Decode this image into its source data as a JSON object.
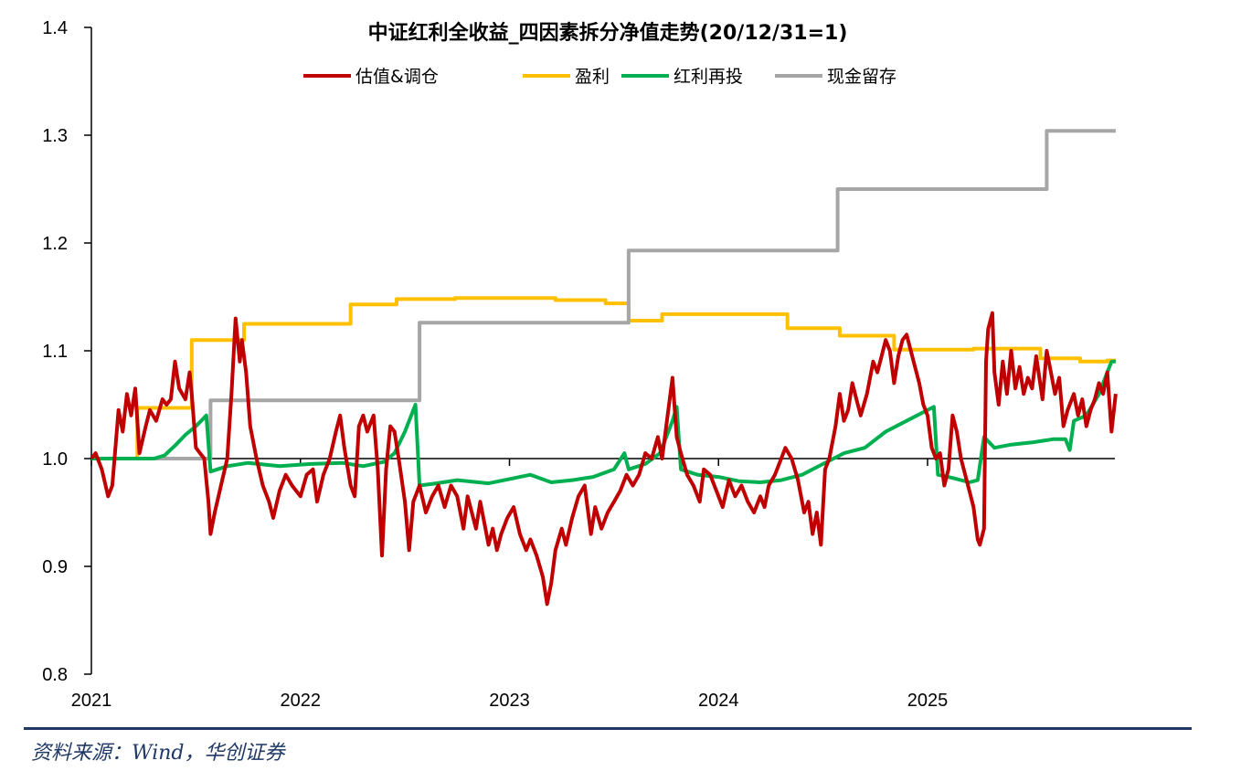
{
  "chart_data": {
    "type": "line",
    "title": "中证红利全收益_四因素拆分净值走势(20/12/31=1)",
    "ylim": [
      0.8,
      1.4
    ],
    "yticks": [
      "0.8",
      "0.9",
      "1.0",
      "1.1",
      "1.2",
      "1.3",
      "1.4"
    ],
    "xlim": [
      2021.0,
      2025.9
    ],
    "xticks": [
      "2021",
      "2022",
      "2023",
      "2024",
      "2025"
    ],
    "baseline": 1.0,
    "legend_position": "top-center",
    "series": [
      {
        "name": "估值&调仓",
        "color": "#c00000",
        "points": [
          [
            2021.0,
            1.0
          ],
          [
            2021.02,
            1.005
          ],
          [
            2021.05,
            0.99
          ],
          [
            2021.08,
            0.965
          ],
          [
            2021.1,
            0.975
          ],
          [
            2021.13,
            1.045
          ],
          [
            2021.15,
            1.025
          ],
          [
            2021.17,
            1.06
          ],
          [
            2021.19,
            1.04
          ],
          [
            2021.21,
            1.065
          ],
          [
            2021.23,
            1.005
          ],
          [
            2021.26,
            1.03
          ],
          [
            2021.28,
            1.045
          ],
          [
            2021.31,
            1.035
          ],
          [
            2021.34,
            1.055
          ],
          [
            2021.36,
            1.05
          ],
          [
            2021.38,
            1.055
          ],
          [
            2021.4,
            1.09
          ],
          [
            2021.42,
            1.065
          ],
          [
            2021.45,
            1.055
          ],
          [
            2021.47,
            1.08
          ],
          [
            2021.48,
            1.06
          ],
          [
            2021.5,
            1.01
          ],
          [
            2021.52,
            1.005
          ],
          [
            2021.54,
            1.0
          ],
          [
            2021.56,
            0.96
          ],
          [
            2021.57,
            0.93
          ],
          [
            2021.59,
            0.95
          ],
          [
            2021.62,
            0.975
          ],
          [
            2021.65,
            1.0
          ],
          [
            2021.67,
            1.06
          ],
          [
            2021.69,
            1.13
          ],
          [
            2021.71,
            1.09
          ],
          [
            2021.72,
            1.11
          ],
          [
            2021.74,
            1.08
          ],
          [
            2021.76,
            1.03
          ],
          [
            2021.79,
            1.0
          ],
          [
            2021.82,
            0.975
          ],
          [
            2021.85,
            0.96
          ],
          [
            2021.87,
            0.945
          ],
          [
            2021.9,
            0.97
          ],
          [
            2021.93,
            0.985
          ],
          [
            2021.96,
            0.975
          ],
          [
            2022.0,
            0.965
          ],
          [
            2022.03,
            0.985
          ],
          [
            2022.06,
            0.99
          ],
          [
            2022.08,
            0.96
          ],
          [
            2022.11,
            0.985
          ],
          [
            2022.14,
            1.0
          ],
          [
            2022.17,
            1.025
          ],
          [
            2022.19,
            1.04
          ],
          [
            2022.21,
            1.01
          ],
          [
            2022.24,
            0.975
          ],
          [
            2022.26,
            0.965
          ],
          [
            2022.28,
            1.03
          ],
          [
            2022.3,
            1.04
          ],
          [
            2022.32,
            1.025
          ],
          [
            2022.35,
            1.04
          ],
          [
            2022.37,
            0.99
          ],
          [
            2022.39,
            0.91
          ],
          [
            2022.41,
            0.99
          ],
          [
            2022.43,
            1.03
          ],
          [
            2022.45,
            1.025
          ],
          [
            2022.47,
            1.0
          ],
          [
            2022.5,
            0.96
          ],
          [
            2022.52,
            0.915
          ],
          [
            2022.54,
            0.96
          ],
          [
            2022.57,
            0.975
          ],
          [
            2022.6,
            0.95
          ],
          [
            2022.63,
            0.965
          ],
          [
            2022.66,
            0.975
          ],
          [
            2022.69,
            0.955
          ],
          [
            2022.72,
            0.975
          ],
          [
            2022.75,
            0.965
          ],
          [
            2022.78,
            0.935
          ],
          [
            2022.8,
            0.965
          ],
          [
            2022.82,
            0.95
          ],
          [
            2022.84,
            0.935
          ],
          [
            2022.86,
            0.96
          ],
          [
            2022.88,
            0.94
          ],
          [
            2022.9,
            0.92
          ],
          [
            2022.92,
            0.935
          ],
          [
            2022.94,
            0.915
          ],
          [
            2022.96,
            0.93
          ],
          [
            2022.99,
            0.945
          ],
          [
            2023.02,
            0.955
          ],
          [
            2023.05,
            0.93
          ],
          [
            2023.08,
            0.915
          ],
          [
            2023.1,
            0.925
          ],
          [
            2023.13,
            0.91
          ],
          [
            2023.16,
            0.89
          ],
          [
            2023.18,
            0.865
          ],
          [
            2023.2,
            0.885
          ],
          [
            2023.22,
            0.915
          ],
          [
            2023.25,
            0.935
          ],
          [
            2023.27,
            0.92
          ],
          [
            2023.3,
            0.945
          ],
          [
            2023.33,
            0.965
          ],
          [
            2023.36,
            0.975
          ],
          [
            2023.39,
            0.93
          ],
          [
            2023.41,
            0.955
          ],
          [
            2023.44,
            0.935
          ],
          [
            2023.47,
            0.95
          ],
          [
            2023.5,
            0.96
          ],
          [
            2023.53,
            0.97
          ],
          [
            2023.56,
            0.985
          ],
          [
            2023.59,
            0.975
          ],
          [
            2023.62,
            0.985
          ],
          [
            2023.65,
            1.005
          ],
          [
            2023.68,
            1.0
          ],
          [
            2023.71,
            1.02
          ],
          [
            2023.73,
            1.0
          ],
          [
            2023.76,
            1.045
          ],
          [
            2023.78,
            1.075
          ],
          [
            2023.8,
            1.02
          ],
          [
            2023.82,
            1.005
          ],
          [
            2023.85,
            0.985
          ],
          [
            2023.88,
            0.975
          ],
          [
            2023.91,
            0.96
          ],
          [
            2023.93,
            0.99
          ],
          [
            2023.96,
            0.985
          ],
          [
            2023.99,
            0.97
          ],
          [
            2024.02,
            0.955
          ],
          [
            2024.05,
            0.98
          ],
          [
            2024.08,
            0.965
          ],
          [
            2024.11,
            0.975
          ],
          [
            2024.14,
            0.96
          ],
          [
            2024.17,
            0.95
          ],
          [
            2024.2,
            0.965
          ],
          [
            2024.22,
            0.955
          ],
          [
            2024.24,
            0.975
          ],
          [
            2024.27,
            0.985
          ],
          [
            2024.3,
            1.0
          ],
          [
            2024.32,
            1.01
          ],
          [
            2024.35,
            1.0
          ],
          [
            2024.38,
            0.98
          ],
          [
            2024.41,
            0.95
          ],
          [
            2024.43,
            0.96
          ],
          [
            2024.45,
            0.93
          ],
          [
            2024.47,
            0.95
          ],
          [
            2024.49,
            0.92
          ],
          [
            2024.51,
            0.99
          ],
          [
            2024.53,
            1.0
          ],
          [
            2024.56,
            1.03
          ],
          [
            2024.58,
            1.06
          ],
          [
            2024.6,
            1.035
          ],
          [
            2024.62,
            1.045
          ],
          [
            2024.64,
            1.07
          ],
          [
            2024.66,
            1.055
          ],
          [
            2024.68,
            1.04
          ],
          [
            2024.71,
            1.06
          ],
          [
            2024.74,
            1.09
          ],
          [
            2024.76,
            1.08
          ],
          [
            2024.78,
            1.095
          ],
          [
            2024.8,
            1.11
          ],
          [
            2024.82,
            1.1
          ],
          [
            2024.84,
            1.07
          ],
          [
            2024.86,
            1.095
          ],
          [
            2024.88,
            1.11
          ],
          [
            2024.9,
            1.115
          ],
          [
            2024.92,
            1.1
          ],
          [
            2024.94,
            1.085
          ],
          [
            2024.96,
            1.07
          ],
          [
            2024.98,
            1.05
          ],
          [
            2025.0,
            1.04
          ],
          [
            2025.02,
            1.01
          ],
          [
            2025.04,
            1.0
          ],
          [
            2025.06,
            1.005
          ],
          [
            2025.08,
            0.975
          ],
          [
            2025.1,
            0.99
          ],
          [
            2025.12,
            1.04
          ],
          [
            2025.14,
            1.025
          ],
          [
            2025.16,
            1.0
          ],
          [
            2025.18,
            0.985
          ],
          [
            2025.2,
            0.97
          ],
          [
            2025.22,
            0.955
          ],
          [
            2025.23,
            0.94
          ],
          [
            2025.24,
            0.925
          ],
          [
            2025.25,
            0.92
          ],
          [
            2025.27,
            0.935
          ],
          [
            2025.28,
            1.09
          ],
          [
            2025.29,
            1.12
          ],
          [
            2025.31,
            1.135
          ],
          [
            2025.32,
            1.08
          ],
          [
            2025.34,
            1.05
          ],
          [
            2025.36,
            1.09
          ],
          [
            2025.38,
            1.06
          ],
          [
            2025.4,
            1.1
          ],
          [
            2025.42,
            1.065
          ],
          [
            2025.44,
            1.085
          ],
          [
            2025.46,
            1.06
          ],
          [
            2025.48,
            1.075
          ],
          [
            2025.5,
            1.065
          ],
          [
            2025.52,
            1.095
          ],
          [
            2025.55,
            1.055
          ],
          [
            2025.57,
            1.1
          ],
          [
            2025.59,
            1.08
          ],
          [
            2025.61,
            1.06
          ],
          [
            2025.63,
            1.075
          ],
          [
            2025.65,
            1.03
          ],
          [
            2025.67,
            1.045
          ],
          [
            2025.7,
            1.06
          ],
          [
            2025.72,
            1.04
          ],
          [
            2025.74,
            1.055
          ],
          [
            2025.76,
            1.03
          ],
          [
            2025.78,
            1.045
          ],
          [
            2025.8,
            1.055
          ],
          [
            2025.82,
            1.07
          ],
          [
            2025.84,
            1.06
          ],
          [
            2025.86,
            1.08
          ],
          [
            2025.88,
            1.025
          ],
          [
            2025.9,
            1.06
          ]
        ]
      },
      {
        "name": "盈利",
        "color": "#ffc000",
        "points": []
      },
      {
        "name": "红利再投",
        "color": "#00b050",
        "points": []
      },
      {
        "name": "现金留存",
        "color": "#a6a6a6",
        "points": []
      }
    ]
  },
  "source": "资料来源：Wind，华创证券"
}
